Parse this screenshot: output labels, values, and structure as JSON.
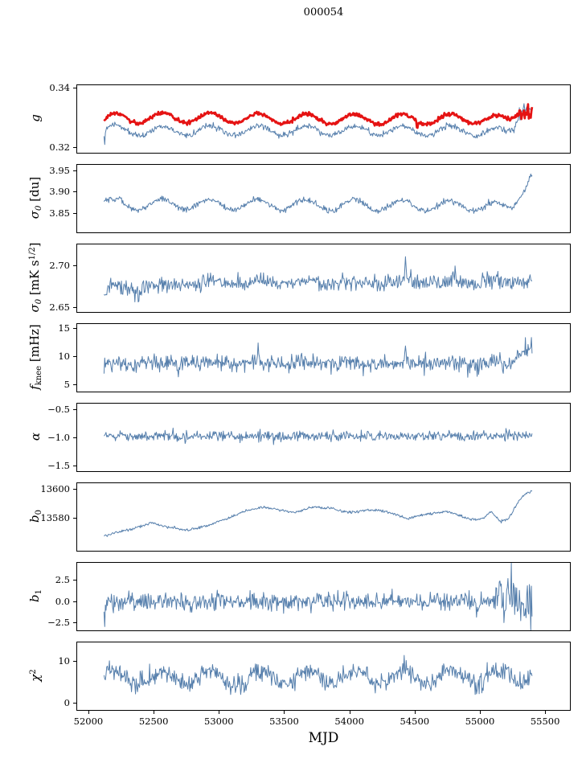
{
  "chart_data": {
    "type": "line",
    "title": "000054",
    "xlabel": "MJD",
    "legend": "none",
    "grid": false,
    "xlim": [
      51914,
      55690
    ],
    "x_range_of_data": [
      52120,
      55400
    ],
    "xticks": [
      {
        "v": 52000,
        "label": "52000"
      },
      {
        "v": 52500,
        "label": "52500"
      },
      {
        "v": 53000,
        "label": "53000"
      },
      {
        "v": 53500,
        "label": "53500"
      },
      {
        "v": 54000,
        "label": "54000"
      },
      {
        "v": 54500,
        "label": "54500"
      },
      {
        "v": 55000,
        "label": "55000"
      },
      {
        "v": 55500,
        "label": "55500"
      }
    ],
    "panels": [
      {
        "name": "g",
        "ylabel": "g",
        "ylabel_segments": [
          {
            "t": "g",
            "it": true
          }
        ],
        "ylim": [
          0.3183,
          0.3412
        ],
        "yticks": [
          {
            "v": 0.32,
            "label": "0.32"
          },
          {
            "v": 0.34,
            "label": "0.34"
          }
        ],
        "series": [
          {
            "name": "g-daily",
            "color": "#567fac",
            "width": 1.0,
            "seed": 11,
            "noise_sd": 0.0005,
            "osc": {
              "amp": 0.0016,
              "period": 368,
              "peak_x": 52200
            },
            "base_points": [
              [
                52120,
                0.3252
              ],
              [
                52170,
                0.3263
              ],
              [
                52400,
                0.3258
              ],
              [
                54900,
                0.3258
              ],
              [
                55120,
                0.3252
              ],
              [
                55200,
                0.325
              ],
              [
                55260,
                0.3268
              ],
              [
                55320,
                0.3338
              ],
              [
                55360,
                0.3346
              ],
              [
                55400,
                0.333
              ]
            ],
            "events": [
              {
                "type": "spike",
                "x": 52124,
                "w": 3,
                "amount": -0.005
              },
              {
                "type": "jitter",
                "x0": 55260,
                "x1": 55400,
                "sd": 0.0011
              }
            ],
            "clip": [
              0.3186,
              0.3408
            ]
          },
          {
            "name": "g-smoothed",
            "color": "#e51313",
            "width": 2.7,
            "seed": 21,
            "noise_sd": 0.00032,
            "osc": {
              "amp": 0.0017,
              "period": 368,
              "peak_x": 52200
            },
            "base_points": [
              [
                52120,
                0.3288
              ],
              [
                52170,
                0.33
              ],
              [
                52600,
                0.3302
              ],
              [
                53600,
                0.3298
              ],
              [
                54500,
                0.3296
              ],
              [
                55050,
                0.33
              ],
              [
                55150,
                0.329
              ],
              [
                55230,
                0.3294
              ],
              [
                55300,
                0.333
              ],
              [
                55350,
                0.334
              ],
              [
                55400,
                0.3322
              ]
            ],
            "events": [
              {
                "type": "spike",
                "x": 54520,
                "w": 5,
                "amount": -0.0026
              },
              {
                "type": "jitter",
                "x0": 55300,
                "x1": 55400,
                "sd": 0.001
              }
            ],
            "clip": [
              0.3186,
              0.3408
            ]
          }
        ]
      },
      {
        "name": "sigma0-du",
        "ylabel": "sigma0 [du]",
        "ylabel_segments": [
          {
            "t": "σ",
            "it": true
          },
          {
            "t": "0",
            "sub": true,
            "it": true
          },
          {
            "t": " [du]"
          }
        ],
        "ylim": [
          3.806,
          3.965
        ],
        "yticks": [
          {
            "v": 3.85,
            "label": "3.85"
          },
          {
            "v": 3.9,
            "label": "3.90"
          },
          {
            "v": 3.95,
            "label": "3.95"
          }
        ],
        "series": [
          {
            "name": "sigma0-du",
            "color": "#567fac",
            "width": 1.0,
            "seed": 31,
            "noise_sd": 0.0035,
            "osc": {
              "amp": 0.0125,
              "period": 368,
              "peak_x": 52560
            },
            "base_points": [
              [
                52120,
                3.874
              ],
              [
                52200,
                3.869
              ],
              [
                52300,
                3.872
              ],
              [
                55060,
                3.869
              ],
              [
                55170,
                3.861
              ],
              [
                55250,
                3.867
              ],
              [
                55310,
                3.901
              ],
              [
                55360,
                3.928
              ],
              [
                55400,
                3.95
              ]
            ],
            "events": [
              {
                "type": "spike",
                "x": 52240,
                "w": 18,
                "amount": 0.01
              }
            ],
            "clip": [
              3.81,
              3.962
            ]
          }
        ]
      },
      {
        "name": "sigma0-mK",
        "ylabel": "sigma0 [mK s^1/2]",
        "ylabel_segments": [
          {
            "t": "σ",
            "it": true
          },
          {
            "t": "0",
            "sub": true,
            "it": true
          },
          {
            "t": " [mK s"
          },
          {
            "t": "1/2",
            "sup": true
          },
          {
            "t": "]"
          }
        ],
        "ylim": [
          2.6453,
          2.7264
        ],
        "yticks": [
          {
            "v": 2.65,
            "label": "2.65"
          },
          {
            "v": 2.7,
            "label": "2.70"
          }
        ],
        "series": [
          {
            "name": "sigma0-mK",
            "color": "#567fac",
            "width": 1.0,
            "seed": 41,
            "noise_sd": 0.0048,
            "osc": {
              "amp": 0.002,
              "period": 368,
              "peak_x": 52200
            },
            "base_points": [
              [
                52120,
                2.66
              ],
              [
                52150,
                2.677
              ],
              [
                52300,
                2.673
              ],
              [
                52600,
                2.677
              ],
              [
                53000,
                2.681
              ],
              [
                55400,
                2.681
              ]
            ],
            "events": [
              {
                "type": "spike",
                "x": 52385,
                "w": 5,
                "amount": -0.016
              },
              {
                "type": "spike",
                "x": 54430,
                "w": 5,
                "amount": 0.03
              },
              {
                "type": "spike",
                "x": 54470,
                "w": 4,
                "amount": 0.018
              },
              {
                "type": "spike",
                "x": 54810,
                "w": 4,
                "amount": 0.017
              },
              {
                "type": "spike",
                "x": 55060,
                "w": 4,
                "amount": 0.014
              }
            ],
            "clip": [
              2.647,
              2.724
            ]
          }
        ]
      },
      {
        "name": "fknee",
        "ylabel": "f_knee [mHz]",
        "ylabel_segments": [
          {
            "t": "f",
            "it": true
          },
          {
            "t": "knee",
            "sub": true
          },
          {
            "t": " [mHz]"
          }
        ],
        "ylim": [
          3.88,
          15.83
        ],
        "yticks": [
          {
            "v": 5,
            "label": "5"
          },
          {
            "v": 10,
            "label": "10"
          },
          {
            "v": 15,
            "label": "15"
          }
        ],
        "series": [
          {
            "name": "fknee",
            "color": "#567fac",
            "width": 1.0,
            "seed": 51,
            "noise_sd": 0.72,
            "osc": {
              "amp": 0.12,
              "period": 368,
              "peak_x": 52200
            },
            "base_points": [
              [
                52120,
                8.8
              ],
              [
                52250,
                8.95
              ],
              [
                55240,
                8.85
              ],
              [
                55320,
                11.2
              ],
              [
                55400,
                11.6
              ]
            ],
            "events": [
              {
                "type": "spike",
                "x": 52690,
                "w": 4,
                "amount": -2.2
              },
              {
                "type": "spike",
                "x": 53300,
                "w": 4,
                "amount": 2.6
              },
              {
                "type": "spike",
                "x": 54430,
                "w": 4,
                "amount": 2.6
              },
              {
                "type": "spike",
                "x": 55180,
                "w": 4,
                "amount": -1.6
              },
              {
                "type": "jitter",
                "x0": 55320,
                "x1": 55400,
                "sd": 0.9
              }
            ],
            "clip": [
              4.4,
              15.3
            ]
          }
        ]
      },
      {
        "name": "alpha",
        "ylabel": "alpha",
        "ylabel_segments": [
          {
            "t": "α",
            "it": true
          }
        ],
        "ylim": [
          -1.583,
          -0.389
        ],
        "yticks": [
          {
            "v": -1.5,
            "label": "−1.5"
          },
          {
            "v": -1.0,
            "label": "−1.0"
          },
          {
            "v": -0.5,
            "label": "−0.5"
          }
        ],
        "series": [
          {
            "name": "alpha",
            "color": "#567fac",
            "width": 1.0,
            "seed": 61,
            "noise_sd": 0.045,
            "osc": {
              "amp": 0.01,
              "period": 368,
              "peak_x": 52200
            },
            "base_points": [
              [
                52120,
                -0.97
              ],
              [
                55400,
                -0.958
              ]
            ],
            "events": [],
            "clip": [
              -1.42,
              -0.55
            ]
          }
        ]
      },
      {
        "name": "b0",
        "ylabel": "b0",
        "ylabel_segments": [
          {
            "t": "b",
            "it": true
          },
          {
            "t": "0",
            "sub": true
          }
        ],
        "ylim": [
          13557.8,
          13604.3
        ],
        "yticks": [
          {
            "v": 13580,
            "label": "13580"
          },
          {
            "v": 13600,
            "label": "13600"
          }
        ],
        "series": [
          {
            "name": "b0",
            "color": "#567fac",
            "width": 1.0,
            "seed": 71,
            "noise_sd": 0.45,
            "base_points": [
              [
                52120,
                13568
              ],
              [
                52200,
                13570
              ],
              [
                52350,
                13573
              ],
              [
                52480,
                13577
              ],
              [
                52620,
                13574
              ],
              [
                52760,
                13572
              ],
              [
                52900,
                13575
              ],
              [
                53060,
                13580
              ],
              [
                53200,
                13585
              ],
              [
                53340,
                13588
              ],
              [
                53460,
                13586
              ],
              [
                53580,
                13584
              ],
              [
                53720,
                13588
              ],
              [
                53860,
                13587
              ],
              [
                54000,
                13584
              ],
              [
                54140,
                13586
              ],
              [
                54280,
                13585
              ],
              [
                54440,
                13580
              ],
              [
                54600,
                13583
              ],
              [
                54760,
                13585
              ],
              [
                54900,
                13580
              ],
              [
                55000,
                13579
              ],
              [
                55090,
                13585
              ],
              [
                55150,
                13578
              ],
              [
                55220,
                13580
              ],
              [
                55300,
                13592
              ],
              [
                55350,
                13597
              ],
              [
                55400,
                13599
              ]
            ],
            "events": [],
            "clip": [
              13560,
              13602
            ]
          }
        ]
      },
      {
        "name": "b1",
        "ylabel": "b1",
        "ylabel_segments": [
          {
            "t": "b",
            "it": true
          },
          {
            "t": "1",
            "sub": true
          }
        ],
        "ylim": [
          -3.33,
          4.63
        ],
        "yticks": [
          {
            "v": -2.5,
            "label": "−2.5"
          },
          {
            "v": 0,
            "label": "0.0"
          },
          {
            "v": 2.5,
            "label": "2.5"
          }
        ],
        "series": [
          {
            "name": "b1",
            "color": "#567fac",
            "width": 1.0,
            "seed": 81,
            "noise_sd": 0.52,
            "base_points": [
              [
                52120,
                0.05
              ],
              [
                55400,
                0.0
              ]
            ],
            "events": [
              {
                "type": "spike",
                "x": 52125,
                "w": 3,
                "amount": -2.6
              },
              {
                "type": "jitter",
                "x0": 55120,
                "x1": 55400,
                "sd": 1.25
              },
              {
                "type": "spike",
                "x": 55150,
                "w": 3,
                "amount": 3.2
              },
              {
                "type": "spike",
                "x": 55240,
                "w": 2,
                "amount": 4.0
              },
              {
                "type": "spike",
                "x": 55390,
                "w": 3,
                "amount": -3.2
              }
            ],
            "clip": [
              -3.3,
              4.6
            ]
          }
        ]
      },
      {
        "name": "chi2",
        "ylabel": "chi^2",
        "ylabel_segments": [
          {
            "t": "χ",
            "it": true
          },
          {
            "t": "2",
            "sup": true
          }
        ],
        "ylim": [
          -1.53,
          14.7
        ],
        "yticks": [
          {
            "v": 0,
            "label": "0"
          },
          {
            "v": 10,
            "label": "10"
          }
        ],
        "series": [
          {
            "name": "chi2",
            "color": "#567fac",
            "width": 1.0,
            "seed": 91,
            "noise_sd": 1.15,
            "osc": {
              "amp": 1.7,
              "period": 368,
              "peak_x": 52200
            },
            "base_points": [
              [
                52120,
                6.2
              ],
              [
                55300,
                6.4
              ],
              [
                55400,
                7.2
              ]
            ],
            "events": [
              {
                "type": "spike",
                "x": 55360,
                "w": 4,
                "amount": 2.5
              }
            ],
            "clip": [
              0.5,
              13.5
            ]
          }
        ]
      }
    ]
  }
}
